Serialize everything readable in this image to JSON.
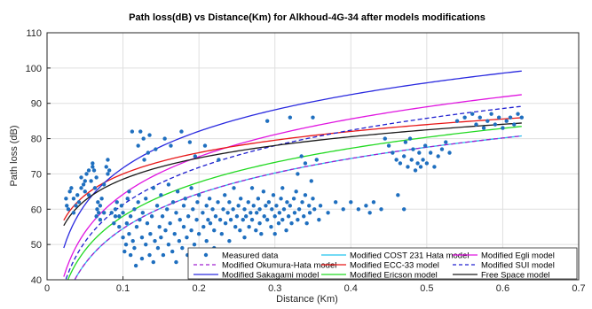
{
  "chart_data": {
    "type": "scatter",
    "title": "Path loss(dB) vs Distance(Km) for Alkhoud-4G-34  after models modifications",
    "xlabel": "Distance (Km)",
    "ylabel": "Path loss (dB)",
    "xlim": [
      0,
      0.7
    ],
    "ylim": [
      40,
      110
    ],
    "xticks": [
      "0",
      "0.1",
      "0.2",
      "0.3",
      "0.4",
      "0.5",
      "0.6",
      "0.7"
    ],
    "yticks": [
      "40",
      "50",
      "60",
      "70",
      "80",
      "90",
      "100",
      "110"
    ],
    "grid": true,
    "legend_position": "bottom-right",
    "scatter_series": {
      "name": "Measured data",
      "color": "#1f6fbf",
      "points": [
        [
          0.025,
          63
        ],
        [
          0.026,
          61
        ],
        [
          0.028,
          60
        ],
        [
          0.03,
          65
        ],
        [
          0.032,
          66
        ],
        [
          0.035,
          63
        ],
        [
          0.035,
          59
        ],
        [
          0.038,
          61
        ],
        [
          0.04,
          64
        ],
        [
          0.042,
          62
        ],
        [
          0.045,
          66
        ],
        [
          0.045,
          69
        ],
        [
          0.048,
          67
        ],
        [
          0.05,
          68
        ],
        [
          0.05,
          65
        ],
        [
          0.052,
          70
        ],
        [
          0.055,
          71
        ],
        [
          0.055,
          64
        ],
        [
          0.058,
          68
        ],
        [
          0.06,
          72
        ],
        [
          0.06,
          73
        ],
        [
          0.062,
          71
        ],
        [
          0.063,
          66
        ],
        [
          0.065,
          69
        ],
        [
          0.065,
          58
        ],
        [
          0.066,
          60
        ],
        [
          0.067,
          62
        ],
        [
          0.068,
          59
        ],
        [
          0.07,
          57
        ],
        [
          0.07,
          61
        ],
        [
          0.072,
          63
        ],
        [
          0.075,
          59
        ],
        [
          0.075,
          67
        ],
        [
          0.078,
          72
        ],
        [
          0.08,
          70
        ],
        [
          0.08,
          74
        ],
        [
          0.082,
          71
        ],
        [
          0.085,
          59
        ],
        [
          0.088,
          56
        ],
        [
          0.09,
          58
        ],
        [
          0.09,
          60
        ],
        [
          0.092,
          62
        ],
        [
          0.095,
          55
        ],
        [
          0.095,
          58
        ],
        [
          0.098,
          61
        ],
        [
          0.1,
          59
        ],
        [
          0.1,
          52
        ],
        [
          0.102,
          48
        ],
        [
          0.104,
          50
        ],
        [
          0.105,
          56
        ],
        [
          0.106,
          63
        ],
        [
          0.108,
          65
        ],
        [
          0.108,
          53
        ],
        [
          0.11,
          47
        ],
        [
          0.11,
          58
        ],
        [
          0.112,
          82
        ],
        [
          0.113,
          51
        ],
        [
          0.115,
          49
        ],
        [
          0.115,
          60
        ],
        [
          0.117,
          44
        ],
        [
          0.118,
          55
        ],
        [
          0.12,
          62
        ],
        [
          0.12,
          78
        ],
        [
          0.122,
          57
        ],
        [
          0.123,
          82
        ],
        [
          0.125,
          52
        ],
        [
          0.125,
          46
        ],
        [
          0.126,
          59
        ],
        [
          0.127,
          80
        ],
        [
          0.128,
          74
        ],
        [
          0.13,
          50
        ],
        [
          0.13,
          63
        ],
        [
          0.132,
          56
        ],
        [
          0.133,
          76
        ],
        [
          0.135,
          47
        ],
        [
          0.135,
          81
        ],
        [
          0.136,
          53
        ],
        [
          0.138,
          58
        ],
        [
          0.14,
          45
        ],
        [
          0.14,
          66
        ],
        [
          0.142,
          51
        ],
        [
          0.143,
          77
        ],
        [
          0.145,
          61
        ],
        [
          0.146,
          49
        ],
        [
          0.148,
          55
        ],
        [
          0.15,
          64
        ],
        [
          0.15,
          52
        ],
        [
          0.152,
          58
        ],
        [
          0.153,
          47
        ],
        [
          0.155,
          80
        ],
        [
          0.156,
          54
        ],
        [
          0.158,
          60
        ],
        [
          0.16,
          67
        ],
        [
          0.16,
          50
        ],
        [
          0.162,
          56
        ],
        [
          0.163,
          78
        ],
        [
          0.165,
          48
        ],
        [
          0.166,
          62
        ],
        [
          0.168,
          53
        ],
        [
          0.17,
          45
        ],
        [
          0.17,
          59
        ],
        [
          0.172,
          65
        ],
        [
          0.174,
          51
        ],
        [
          0.175,
          57
        ],
        [
          0.177,
          82
        ],
        [
          0.178,
          49
        ],
        [
          0.18,
          61
        ],
        [
          0.18,
          55
        ],
        [
          0.182,
          63
        ],
        [
          0.184,
          52
        ],
        [
          0.185,
          47
        ],
        [
          0.186,
          58
        ],
        [
          0.188,
          79
        ],
        [
          0.19,
          54
        ],
        [
          0.19,
          66
        ],
        [
          0.192,
          60
        ],
        [
          0.194,
          50
        ],
        [
          0.195,
          75
        ],
        [
          0.197,
          57
        ],
        [
          0.198,
          62
        ],
        [
          0.2,
          53
        ],
        [
          0.2,
          64
        ],
        [
          0.202,
          48
        ],
        [
          0.205,
          59
        ],
        [
          0.206,
          55
        ],
        [
          0.208,
          78
        ],
        [
          0.21,
          61
        ],
        [
          0.21,
          51
        ],
        [
          0.212,
          57
        ],
        [
          0.214,
          63
        ],
        [
          0.215,
          56
        ],
        [
          0.218,
          60
        ],
        [
          0.22,
          54
        ],
        [
          0.22,
          49
        ],
        [
          0.222,
          58
        ],
        [
          0.225,
          62
        ],
        [
          0.226,
          74
        ],
        [
          0.228,
          57
        ],
        [
          0.23,
          53
        ],
        [
          0.232,
          60
        ],
        [
          0.234,
          64
        ],
        [
          0.235,
          56
        ],
        [
          0.238,
          59
        ],
        [
          0.24,
          51
        ],
        [
          0.24,
          62
        ],
        [
          0.242,
          57
        ],
        [
          0.245,
          60
        ],
        [
          0.246,
          66
        ],
        [
          0.248,
          55
        ],
        [
          0.25,
          58
        ],
        [
          0.252,
          61
        ],
        [
          0.254,
          54
        ],
        [
          0.255,
          63
        ],
        [
          0.258,
          57
        ],
        [
          0.26,
          60
        ],
        [
          0.26,
          52
        ],
        [
          0.262,
          58
        ],
        [
          0.265,
          62
        ],
        [
          0.266,
          55
        ],
        [
          0.268,
          59
        ],
        [
          0.27,
          66
        ],
        [
          0.27,
          57
        ],
        [
          0.272,
          61
        ],
        [
          0.275,
          54
        ],
        [
          0.276,
          59
        ],
        [
          0.278,
          63
        ],
        [
          0.28,
          56
        ],
        [
          0.28,
          60
        ],
        [
          0.282,
          53
        ],
        [
          0.285,
          65
        ],
        [
          0.286,
          58
        ],
        [
          0.288,
          61
        ],
        [
          0.29,
          57
        ],
        [
          0.29,
          85
        ],
        [
          0.292,
          62
        ],
        [
          0.295,
          55
        ],
        [
          0.296,
          60
        ],
        [
          0.298,
          64
        ],
        [
          0.3,
          58
        ],
        [
          0.3,
          53
        ],
        [
          0.302,
          61
        ],
        [
          0.305,
          56
        ],
        [
          0.306,
          59
        ],
        [
          0.308,
          63
        ],
        [
          0.31,
          57
        ],
        [
          0.31,
          66
        ],
        [
          0.312,
          60
        ],
        [
          0.315,
          54
        ],
        [
          0.316,
          62
        ],
        [
          0.318,
          58
        ],
        [
          0.32,
          86
        ],
        [
          0.32,
          61
        ],
        [
          0.322,
          56
        ],
        [
          0.325,
          63
        ],
        [
          0.326,
          59
        ],
        [
          0.328,
          65
        ],
        [
          0.33,
          57
        ],
        [
          0.33,
          70
        ],
        [
          0.332,
          60
        ],
        [
          0.335,
          75
        ],
        [
          0.336,
          62
        ],
        [
          0.338,
          58
        ],
        [
          0.34,
          64
        ],
        [
          0.34,
          73
        ],
        [
          0.342,
          56
        ],
        [
          0.345,
          61
        ],
        [
          0.346,
          59
        ],
        [
          0.348,
          68
        ],
        [
          0.35,
          86
        ],
        [
          0.35,
          63
        ],
        [
          0.352,
          60
        ],
        [
          0.355,
          74
        ],
        [
          0.358,
          57
        ],
        [
          0.36,
          61
        ],
        [
          0.37,
          59
        ],
        [
          0.38,
          62
        ],
        [
          0.39,
          60
        ],
        [
          0.4,
          62
        ],
        [
          0.41,
          60
        ],
        [
          0.42,
          61
        ],
        [
          0.425,
          59
        ],
        [
          0.43,
          62
        ],
        [
          0.44,
          60
        ],
        [
          0.445,
          80
        ],
        [
          0.45,
          78
        ],
        [
          0.455,
          76
        ],
        [
          0.46,
          74
        ],
        [
          0.462,
          64
        ],
        [
          0.465,
          73
        ],
        [
          0.47,
          60
        ],
        [
          0.47,
          75
        ],
        [
          0.472,
          79
        ],
        [
          0.475,
          72
        ],
        [
          0.478,
          80
        ],
        [
          0.48,
          74
        ],
        [
          0.482,
          77
        ],
        [
          0.485,
          71
        ],
        [
          0.488,
          73
        ],
        [
          0.49,
          76
        ],
        [
          0.492,
          72
        ],
        [
          0.495,
          74
        ],
        [
          0.498,
          78
        ],
        [
          0.5,
          73
        ],
        [
          0.505,
          76
        ],
        [
          0.51,
          72
        ],
        [
          0.515,
          75
        ],
        [
          0.52,
          77
        ],
        [
          0.525,
          79
        ],
        [
          0.53,
          76
        ],
        [
          0.54,
          85
        ],
        [
          0.55,
          86
        ],
        [
          0.56,
          87
        ],
        [
          0.565,
          84
        ],
        [
          0.57,
          86
        ],
        [
          0.575,
          83
        ],
        [
          0.58,
          85
        ],
        [
          0.585,
          87
        ],
        [
          0.59,
          84
        ],
        [
          0.595,
          86
        ],
        [
          0.6,
          83
        ],
        [
          0.605,
          85
        ],
        [
          0.61,
          86
        ],
        [
          0.615,
          84
        ],
        [
          0.62,
          87
        ],
        [
          0.625,
          86
        ]
      ]
    },
    "series": [
      {
        "name": "Modified COST 231 Hata model",
        "color": "#22c4ee",
        "dash": false,
        "A": 87.5,
        "B": 33.0
      },
      {
        "name": "Modified Egli model",
        "color": "#e016e0",
        "dash": false,
        "A": 99.7,
        "B": 35.5
      },
      {
        "name": "Modified Okumura-Hata model",
        "color": "#a020d0",
        "dash": true,
        "A": 87.5,
        "B": 33.0
      },
      {
        "name": "Modified ECC-33 model",
        "color": "#e81818",
        "dash": false,
        "A": 90.0,
        "B": 20.0
      },
      {
        "name": "Modified SUI model",
        "color": "#2020d0",
        "dash": true,
        "A": 96.3,
        "B": 35.0
      },
      {
        "name": "Modified Sakagami model",
        "color": "#2a2adf",
        "dash": false,
        "A": 106.2,
        "B": 34.5
      },
      {
        "name": "Modified Ericson model",
        "color": "#22d922",
        "dash": false,
        "A": 90.0,
        "B": 32.0
      },
      {
        "name": "Free Space model",
        "color": "#1a1a1a",
        "dash": false,
        "A": 88.5,
        "B": 20.0
      }
    ],
    "legend": [
      {
        "label": "Measured data",
        "kind": "marker",
        "color": "#1f6fbf"
      },
      {
        "label": "Modified COST 231 Hata model",
        "kind": "line",
        "color": "#22c4ee",
        "dash": false
      },
      {
        "label": "Modified Egli model",
        "kind": "line",
        "color": "#e016e0",
        "dash": false
      },
      {
        "label": "Modified Okumura-Hata model",
        "kind": "line",
        "color": "#a020d0",
        "dash": true
      },
      {
        "label": "Modified ECC-33 model",
        "kind": "line",
        "color": "#e81818",
        "dash": false
      },
      {
        "label": "Modified SUI model",
        "kind": "line",
        "color": "#2020d0",
        "dash": true
      },
      {
        "label": "Modified Sakagami model",
        "kind": "line",
        "color": "#2a2adf",
        "dash": false
      },
      {
        "label": "Modified Ericson model",
        "kind": "line",
        "color": "#22d922",
        "dash": false
      },
      {
        "label": "Free Space model",
        "kind": "line",
        "color": "#1a1a1a",
        "dash": false
      }
    ]
  }
}
